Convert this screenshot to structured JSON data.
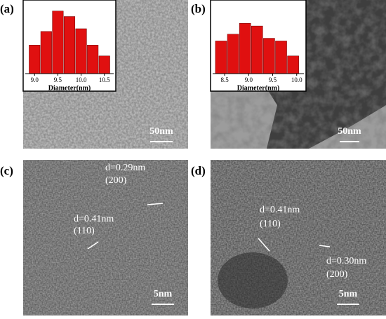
{
  "panels": [
    {
      "label": "(a)",
      "scale_bar": "50nm",
      "histogram": {
        "type": "histogram",
        "xlabel": "Diameter(nm)",
        "color": "#e01010",
        "bins": [
          8.875,
          9.125,
          9.375,
          9.625,
          9.875,
          10.125,
          10.375,
          10.625
        ],
        "values": [
          42,
          62,
          92,
          84,
          66,
          42,
          26
        ],
        "xlim": [
          8.8,
          10.7
        ],
        "ylim": [
          0,
          100
        ],
        "xticks": [
          {
            "value": 9,
            "label": "9.0"
          },
          9.5,
          {
            "value": 10,
            "label": "10.0"
          },
          10.5
        ]
      }
    },
    {
      "label": "(b)",
      "scale_bar": "50nm",
      "histogram": {
        "type": "histogram",
        "xlabel": "Diameter(nm)",
        "color": "#e01010",
        "bins": [
          8.3,
          8.55,
          8.8,
          9.05,
          9.3,
          9.55,
          9.8,
          10.05
        ],
        "values": [
          48,
          58,
          74,
          70,
          52,
          48,
          26
        ],
        "xlim": [
          8.25,
          10.15
        ],
        "ylim": [
          0,
          100
        ],
        "xticks": [
          8.5,
          {
            "value": 9,
            "label": "9.0"
          },
          9.5,
          {
            "value": 10,
            "label": "10.0"
          }
        ]
      }
    },
    {
      "label": "(c)",
      "scale_bar": "5nm",
      "annotations": [
        "d=0.29nm",
        "(200)",
        "d=0.41nm",
        "(110)"
      ]
    },
    {
      "label": "(d)",
      "scale_bar": "5nm",
      "annotations": [
        "d=0.41nm",
        "(110)",
        "d=0.30nm",
        "(200)"
      ]
    }
  ]
}
